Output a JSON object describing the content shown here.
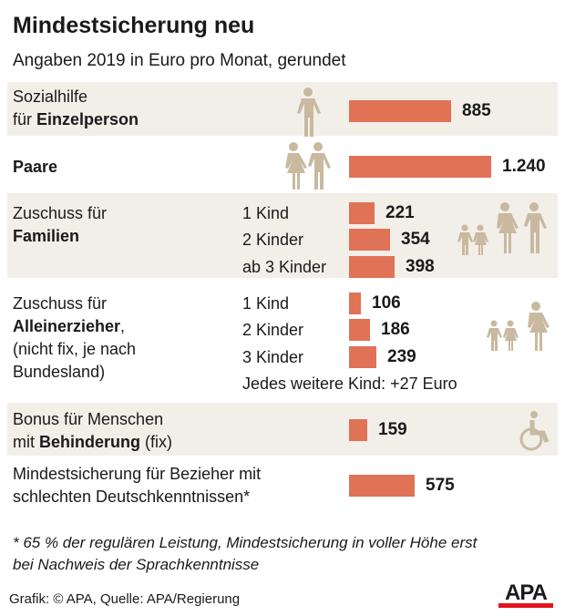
{
  "title": "Mindestsicherung neu",
  "subtitle": "Angaben 2019 in Euro pro Monat, gerundet",
  "colors": {
    "bar": "#e07256",
    "band": "#f2efe9",
    "icon": "#c8b99f"
  },
  "chart_data": {
    "type": "bar",
    "orientation": "horizontal",
    "unit": "Euro pro Monat",
    "groups": [
      {
        "label_lines": [
          "Sozialhilfe",
          "für ",
          "Einzelperson"
        ],
        "icon": "single-person-icon",
        "items": [
          {
            "label": "",
            "value": 885,
            "display": "885"
          }
        ]
      },
      {
        "label_lines": [
          "Paare"
        ],
        "icon": "couple-icon",
        "items": [
          {
            "label": "",
            "value": 1240,
            "display": "1.240"
          }
        ]
      },
      {
        "label_lines": [
          "Zuschuss für",
          "Familien"
        ],
        "icon": "family-icon",
        "items": [
          {
            "label": "1 Kind",
            "value": 221,
            "display": "221"
          },
          {
            "label": "2 Kinder",
            "value": 354,
            "display": "354"
          },
          {
            "label": "ab 3 Kinder",
            "value": 398,
            "display": "398"
          }
        ]
      },
      {
        "label_lines": [
          "Zuschuss für",
          "Alleinerzieher",
          ",",
          "(nicht fix, je nach",
          "Bundesland)"
        ],
        "icon": "single-parent-icon",
        "items": [
          {
            "label": "1 Kind",
            "value": 106,
            "display": "106"
          },
          {
            "label": "2 Kinder",
            "value": 186,
            "display": "186"
          },
          {
            "label": "3 Kinder",
            "value": 239,
            "display": "239"
          }
        ],
        "note": "Jedes weitere Kind: +27 Euro"
      },
      {
        "label_lines": [
          "Bonus für Menschen",
          "mit ",
          "Behinderung",
          " (fix)"
        ],
        "icon": "wheelchair-icon",
        "items": [
          {
            "label": "",
            "value": 159,
            "display": "159"
          }
        ]
      },
      {
        "label_lines": [
          "Mindestsicherung für Bezieher mit",
          "schlechten Deutschkenntnissen*"
        ],
        "icon": "",
        "items": [
          {
            "label": "",
            "value": 575,
            "display": "575"
          }
        ]
      }
    ]
  },
  "footnote": [
    "* 65 % der regulären Leistung, Mindestsicherung in voller Höhe erst",
    "bei Nachweis der Sprachkenntnisse"
  ],
  "source": "Grafik: © APA, Quelle: APA/Regierung",
  "logo": "APA"
}
